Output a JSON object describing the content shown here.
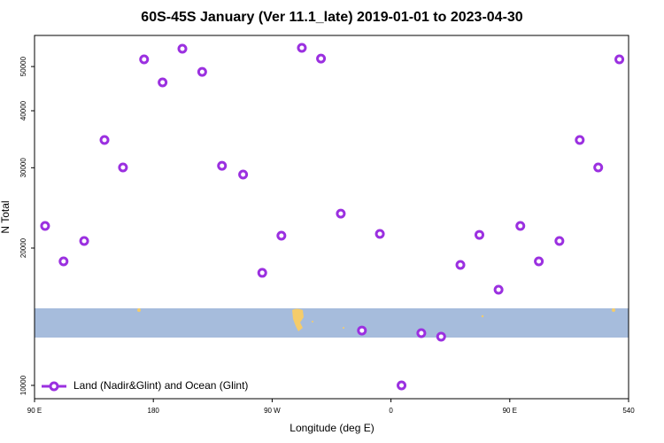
{
  "chart_data": {
    "type": "scatter",
    "title": "60S-45S January (Ver 11.1_late)   2019-01-01 to 2023-04-30",
    "xlabel": "Longitude (deg E)",
    "ylabel": "N Total",
    "xlim": [
      90,
      540
    ],
    "xticks": [
      {
        "value": 90,
        "label": "90 E"
      },
      180,
      {
        "value": 270,
        "label": "90 W"
      },
      {
        "value": 360,
        "label": "0"
      },
      {
        "value": 450,
        "label": "90 E"
      },
      540
    ],
    "ylim": [
      9350,
      58500
    ],
    "yscale": "log",
    "yticks": [
      10000,
      20000,
      30000,
      40000,
      50000
    ],
    "legend": "lower left",
    "series": [
      {
        "name": "Land (Nadir&Glint) and Ocean (Glint)",
        "color": "#9b30e0",
        "x": [
          98,
          112,
          127.6,
          143,
          157,
          173,
          187,
          202,
          217,
          232,
          248,
          262.5,
          277,
          292.5,
          307,
          322,
          338,
          351.6,
          368,
          383,
          398,
          412.6,
          427,
          441.5,
          458,
          472,
          487.6,
          503,
          517,
          533
        ],
        "values": [
          22360,
          18700,
          20730,
          34510,
          30040,
          51840,
          46150,
          54700,
          48670,
          30300,
          28990,
          17650,
          21290,
          54940,
          52050,
          23800,
          13190,
          21480,
          10000,
          13020,
          12790,
          18370,
          21380,
          16210,
          22360,
          18700,
          20730,
          34510,
          30040,
          51840
        ]
      }
    ]
  }
}
